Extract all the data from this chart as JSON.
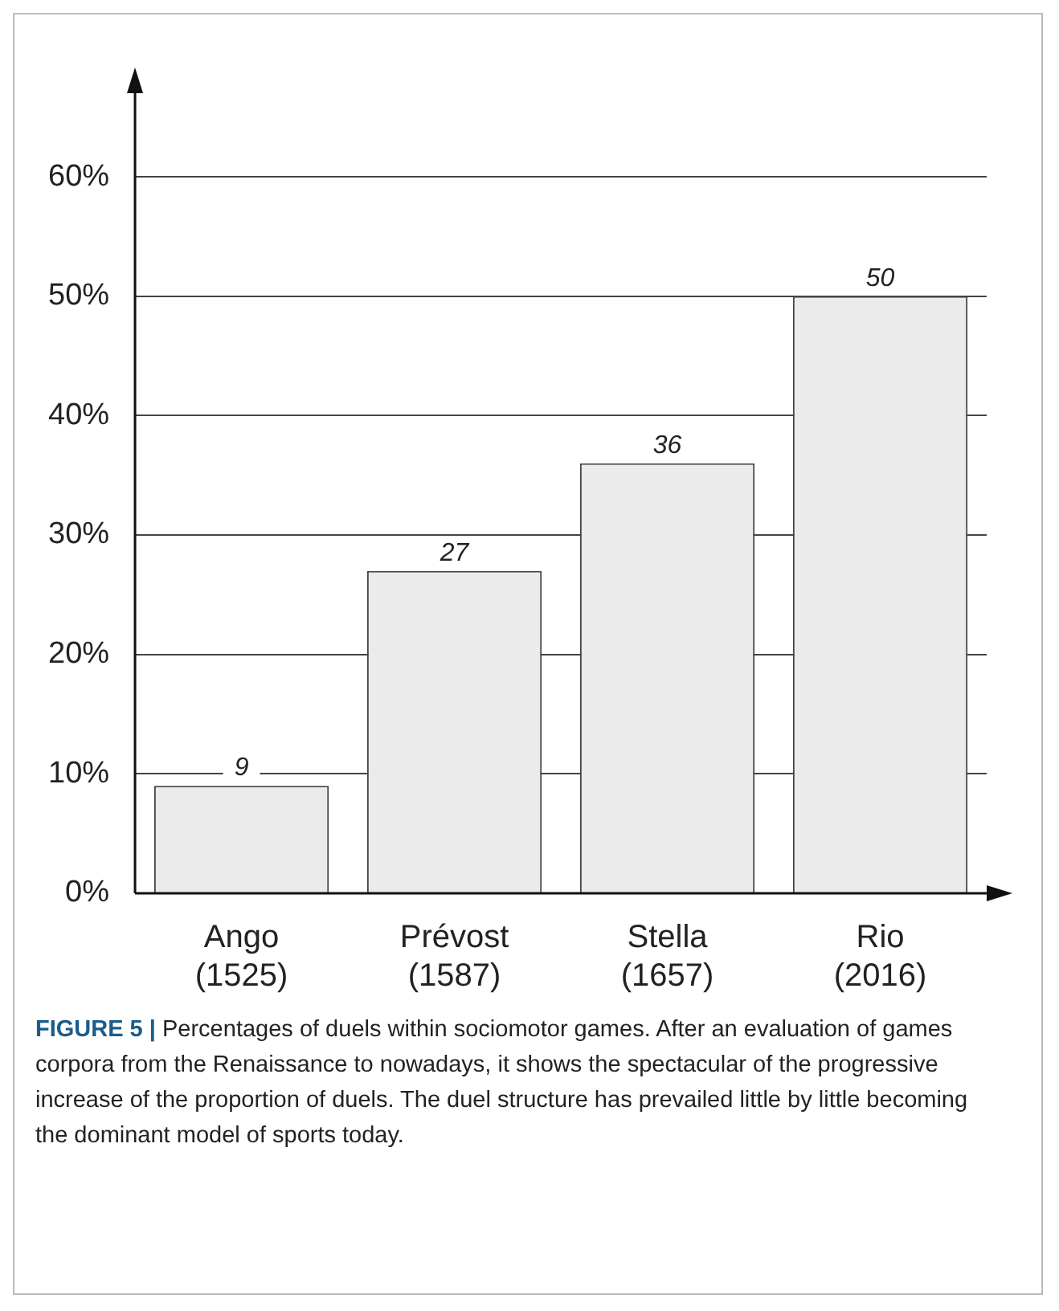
{
  "chart_data": {
    "type": "bar",
    "categories": [
      "Ango\n(1525)",
      "Prévost\n(1587)",
      "Stella\n(1657)",
      "Rio\n(2016)"
    ],
    "values": [
      9,
      27,
      36,
      50
    ],
    "color": "#ebebeb",
    "ylim": [
      0,
      67
    ],
    "yticks": [
      {
        "value": 0,
        "label": "0%"
      },
      {
        "value": 10,
        "label": "10%"
      },
      {
        "value": 20,
        "label": "20%"
      },
      {
        "value": 30,
        "label": "30%"
      },
      {
        "value": 40,
        "label": "40%"
      },
      {
        "value": 50,
        "label": "50%"
      },
      {
        "value": 60,
        "label": "60%"
      }
    ],
    "grid": "y",
    "data_labels": true,
    "legend": false,
    "annotations": [
      "FIGURE 5 |",
      "Percentages of duels within sociomotor games. After an evaluation of games corpora from the Renaissance to nowadays, it shows the spectacular of the progressive increase of the proportion of duels. The duel structure has prevailed little by little becoming the dominant model of sports today."
    ]
  }
}
